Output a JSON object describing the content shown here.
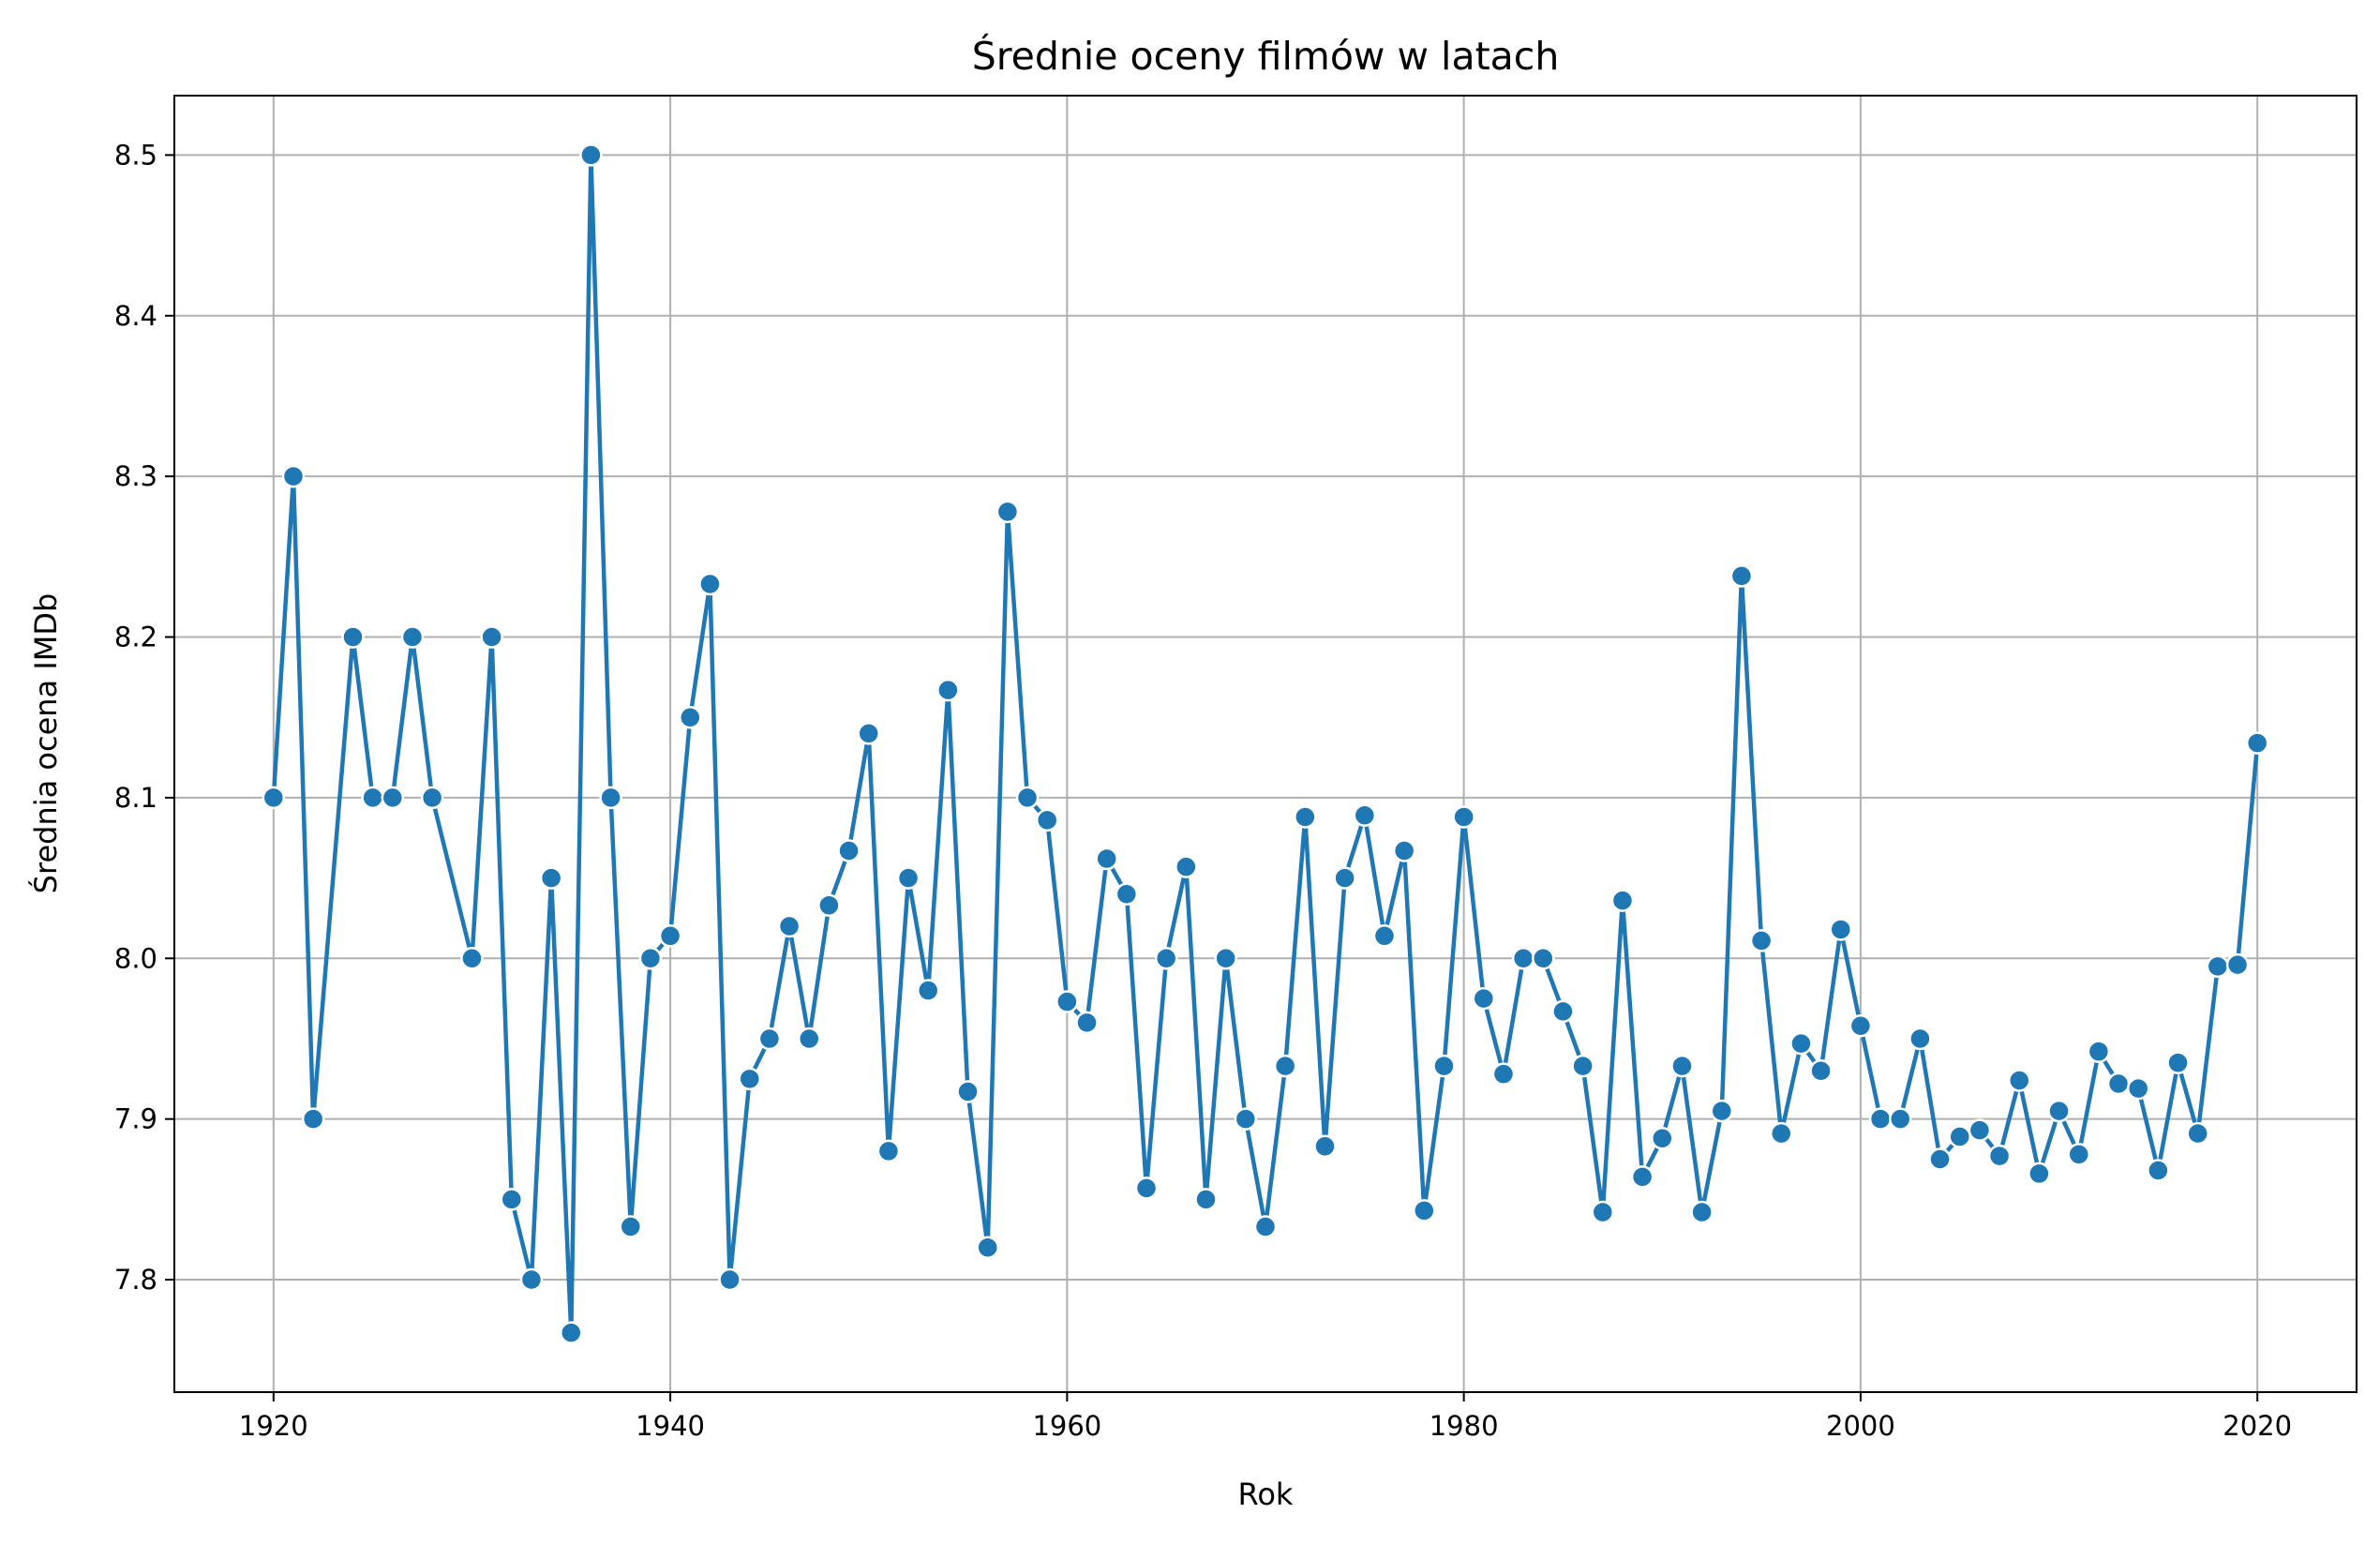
{
  "chart_data": {
    "type": "line",
    "title": "Średnie oceny filmów w latach",
    "xlabel": "Rok",
    "ylabel": "Średnia ocena IMDb",
    "xlim": [
      1915,
      2025
    ],
    "ylim": [
      7.73,
      8.537
    ],
    "xticks": [
      1920,
      1940,
      1960,
      1980,
      2000,
      2020
    ],
    "xtick_labels": [
      "1920",
      "1940",
      "1960",
      "1980",
      "2000",
      "2020"
    ],
    "yticks": [
      7.8,
      7.9,
      8.0,
      8.1,
      8.2,
      8.3,
      8.4,
      8.5
    ],
    "ytick_labels": [
      "7.8",
      "7.9",
      "8.0",
      "8.1",
      "8.2",
      "8.3",
      "8.4",
      "8.5"
    ],
    "grid": true,
    "line_color": "#1f77b4",
    "marker_edge_color": "#ffffff",
    "series": [
      {
        "x": [
          1920,
          1921,
          1922,
          1924,
          1925,
          1926,
          1927,
          1928,
          1930,
          1931,
          1932,
          1933,
          1934,
          1935,
          1936,
          1937,
          1938,
          1939,
          1940,
          1941,
          1942,
          1943,
          1944,
          1945,
          1946,
          1947,
          1948,
          1949,
          1950,
          1951,
          1952,
          1953,
          1954,
          1955,
          1956,
          1957,
          1958,
          1959,
          1960,
          1961,
          1962,
          1963,
          1964,
          1965,
          1966,
          1967,
          1968,
          1969,
          1970,
          1971,
          1972,
          1973,
          1974,
          1975,
          1976,
          1977,
          1978,
          1979,
          1980,
          1981,
          1982,
          1983,
          1984,
          1985,
          1986,
          1987,
          1988,
          1989,
          1990,
          1991,
          1992,
          1993,
          1994,
          1995,
          1996,
          1997,
          1998,
          1999,
          2000,
          2001,
          2002,
          2003,
          2004,
          2005,
          2006,
          2007,
          2008,
          2009,
          2010,
          2011,
          2012,
          2013,
          2014,
          2015,
          2016,
          2017,
          2018,
          2019,
          2020
        ],
        "y": [
          8.1,
          8.3,
          7.9,
          8.2,
          8.1,
          8.1,
          8.2,
          8.1,
          8.0,
          8.2,
          7.85,
          7.8,
          8.05,
          7.767,
          8.5,
          8.1,
          7.833,
          8.0,
          8.014,
          8.15,
          8.233,
          7.8,
          7.925,
          7.95,
          8.02,
          7.95,
          8.033,
          8.067,
          8.14,
          7.88,
          8.05,
          7.98,
          8.167,
          7.917,
          7.82,
          8.278,
          8.1,
          8.086,
          7.973,
          7.96,
          8.062,
          8.04,
          7.857,
          8.0,
          8.057,
          7.85,
          8.0,
          7.9,
          7.833,
          7.933,
          8.088,
          7.883,
          8.05,
          8.089,
          8.014,
          8.067,
          7.843,
          7.933,
          8.088,
          7.975,
          7.928,
          8.0,
          8.0,
          7.967,
          7.933,
          7.842,
          8.036,
          7.864,
          7.888,
          7.933,
          7.842,
          7.905,
          8.238,
          8.011,
          7.891,
          7.947,
          7.93,
          8.018,
          7.958,
          7.9,
          7.9,
          7.95,
          7.875,
          7.889,
          7.893,
          7.877,
          7.924,
          7.866,
          7.905,
          7.878,
          7.942,
          7.922,
          7.919,
          7.868,
          7.935,
          7.891,
          7.995,
          7.996,
          8.134
        ]
      }
    ]
  }
}
